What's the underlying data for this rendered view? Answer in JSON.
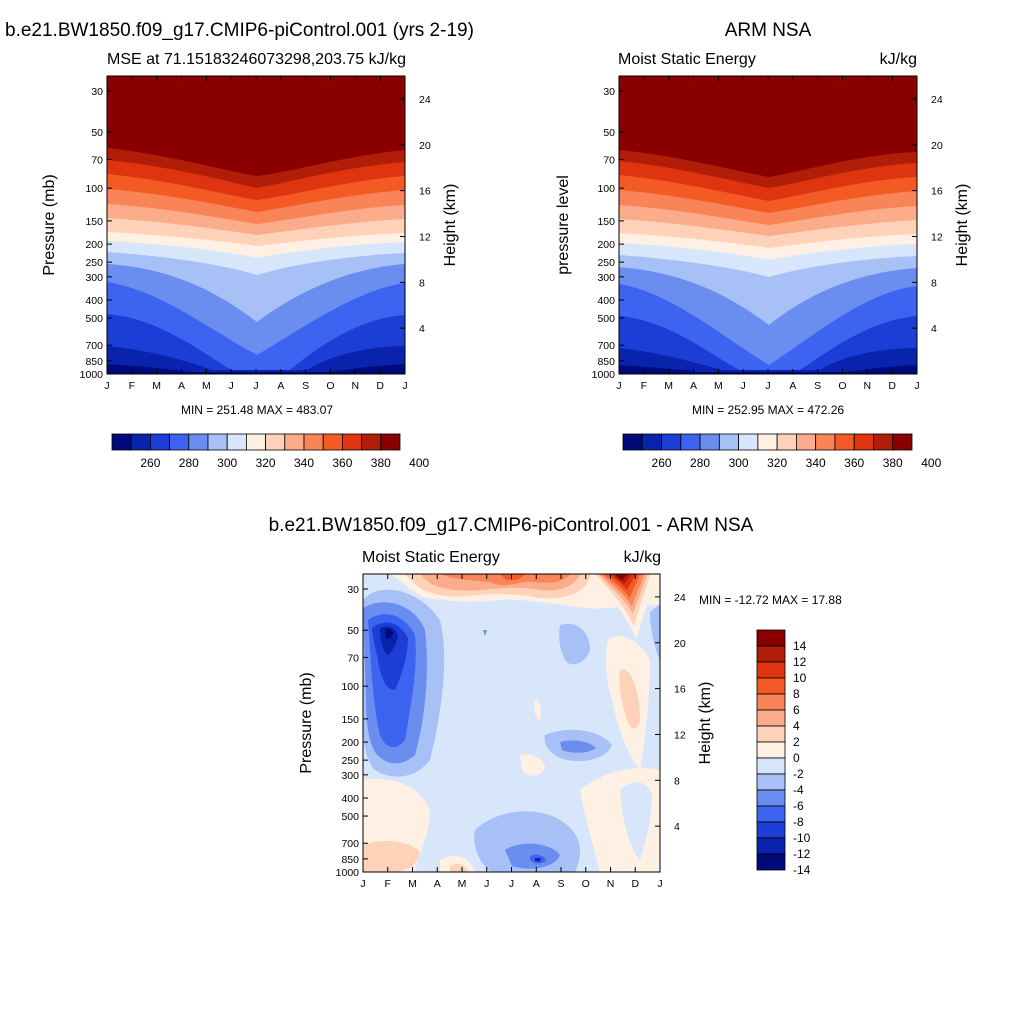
{
  "panel1": {
    "main_title": "b.e21.BW1850.f09_g17.CMIP6-piControl.001 (yrs 2-19)",
    "left_title": "MSE at 71.15183246073298,203.75",
    "right_title": "kJ/kg",
    "ylabel": "Pressure (mb)",
    "y2label": "Height (km)",
    "minmax": "MIN = 251.48 MAX = 483.07"
  },
  "panel2": {
    "main_title": "ARM NSA",
    "left_title": "Moist Static Energy",
    "right_title": "kJ/kg",
    "ylabel": "pressure level",
    "y2label": "Height (km)",
    "minmax": "MIN = 252.95 MAX = 472.26"
  },
  "panel3": {
    "main_title": "b.e21.BW1850.f09_g17.CMIP6-piControl.001 - ARM NSA",
    "left_title": "Moist Static Energy",
    "right_title": "kJ/kg",
    "ylabel": "Pressure (mb)",
    "y2label": "Height (km)",
    "minmax": "MIN = -12.72 MAX =  17.88"
  },
  "chart_data": [
    {
      "type": "heatmap",
      "title": "b.e21.BW1850.f09_g17.CMIP6-piControl.001 (yrs 2-19)",
      "subtitle": "MSE at 71.15183246073298,203.75",
      "units": "kJ/kg",
      "x_ticks": [
        "J",
        "F",
        "M",
        "A",
        "M",
        "J",
        "J",
        "A",
        "S",
        "O",
        "N",
        "D",
        "J"
      ],
      "y_ticks_pressure": [
        30,
        50,
        70,
        100,
        150,
        200,
        250,
        300,
        400,
        500,
        700,
        850,
        1000
      ],
      "y2_ticks_height": [
        24,
        20,
        16,
        12,
        8,
        4
      ],
      "ylabel": "Pressure (mb)",
      "y2label": "Height (km)",
      "min": 251.48,
      "max": 483.07,
      "colorbar_labels": [
        "260",
        "280",
        "300",
        "320",
        "340",
        "360",
        "380",
        "400"
      ],
      "colorbar_colors": [
        "#000a7a",
        "#0a23ad",
        "#1c3ed6",
        "#3c64f0",
        "#6a8ef0",
        "#a7c0f5",
        "#d8e6fb",
        "#fff0e4",
        "#fdd2b8",
        "#fbac8a",
        "#f88458",
        "#f45a24",
        "#de3410",
        "#b11d06",
        "#8a0000"
      ]
    },
    {
      "type": "heatmap",
      "title": "ARM NSA",
      "subtitle": "Moist Static Energy",
      "units": "kJ/kg",
      "x_ticks": [
        "J",
        "F",
        "M",
        "A",
        "M",
        "J",
        "J",
        "A",
        "S",
        "O",
        "N",
        "D",
        "J"
      ],
      "y_ticks_pressure": [
        30,
        50,
        70,
        100,
        150,
        200,
        250,
        300,
        400,
        500,
        700,
        850,
        1000
      ],
      "y2_ticks_height": [
        24,
        20,
        16,
        12,
        8,
        4
      ],
      "ylabel": "pressure level",
      "y2label": "Height (km)",
      "min": 252.95,
      "max": 472.26,
      "colorbar_labels": [
        "260",
        "280",
        "300",
        "320",
        "340",
        "360",
        "380",
        "400"
      ],
      "colorbar_colors": [
        "#000a7a",
        "#0a23ad",
        "#1c3ed6",
        "#3c64f0",
        "#6a8ef0",
        "#a7c0f5",
        "#d8e6fb",
        "#fff0e4",
        "#fdd2b8",
        "#fbac8a",
        "#f88458",
        "#f45a24",
        "#de3410",
        "#b11d06",
        "#8a0000"
      ]
    },
    {
      "type": "heatmap",
      "title": "b.e21.BW1850.f09_g17.CMIP6-piControl.001 - ARM NSA",
      "subtitle": "Moist Static Energy",
      "units": "kJ/kg",
      "x_ticks": [
        "J",
        "F",
        "M",
        "A",
        "M",
        "J",
        "J",
        "A",
        "S",
        "O",
        "N",
        "D",
        "J"
      ],
      "y_ticks_pressure": [
        30,
        50,
        70,
        100,
        150,
        200,
        250,
        300,
        400,
        500,
        700,
        850,
        1000
      ],
      "y2_ticks_height": [
        24,
        20,
        16,
        12,
        8,
        4
      ],
      "ylabel": "Pressure (mb)",
      "y2label": "Height (km)",
      "min": -12.72,
      "max": 17.88,
      "colorbar_labels": [
        "14",
        "12",
        "10",
        "8",
        "6",
        "4",
        "2",
        "0",
        "-2",
        "-4",
        "-6",
        "-8",
        "-10",
        "-12",
        "-14"
      ],
      "colorbar_colors": [
        "#8a0000",
        "#b11d06",
        "#de3410",
        "#f45a24",
        "#f88458",
        "#fbac8a",
        "#fdd2b8",
        "#fff0e4",
        "#d8e6fb",
        "#a7c0f5",
        "#6a8ef0",
        "#3c64f0",
        "#1c3ed6",
        "#0a23ad",
        "#000a7a"
      ]
    }
  ]
}
